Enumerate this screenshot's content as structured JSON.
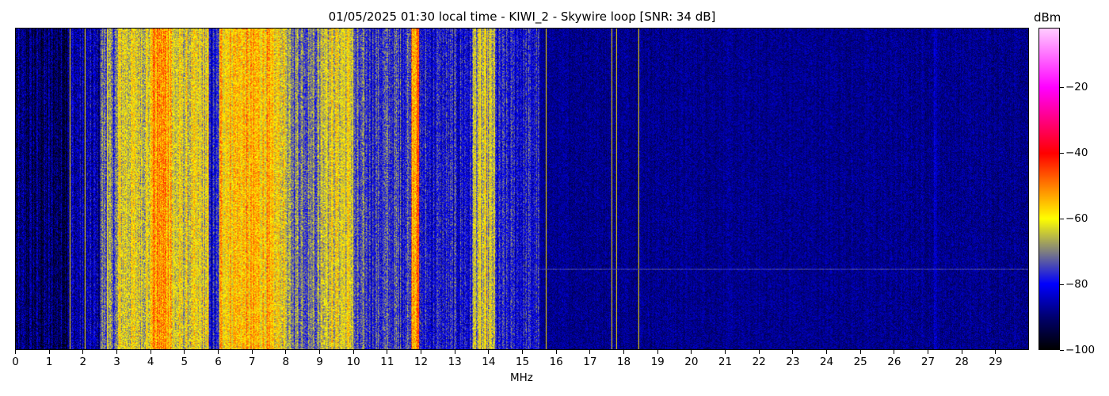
{
  "chart_data": {
    "type": "heatmap",
    "title": "01/05/2025 01:30 local time - KIWI_2 - Skywire loop [SNR: 34 dB]",
    "xlabel": "MHz",
    "ylabel": "",
    "xlim": [
      0,
      30
    ],
    "xticks": [
      0,
      1,
      2,
      3,
      4,
      5,
      6,
      7,
      8,
      9,
      10,
      11,
      12,
      13,
      14,
      15,
      16,
      17,
      18,
      19,
      20,
      21,
      22,
      23,
      24,
      25,
      26,
      27,
      28,
      29
    ],
    "colorbar": {
      "label": "dBm",
      "range": [
        -100,
        -2
      ],
      "ticks": [
        -20,
        -40,
        -60,
        -80,
        -100
      ],
      "colormap": [
        {
          "value": -100,
          "color": "#000000"
        },
        {
          "value": -90,
          "color": "#000070"
        },
        {
          "value": -80,
          "color": "#0000ff"
        },
        {
          "value": -70,
          "color": "#808080"
        },
        {
          "value": -60,
          "color": "#ffff00"
        },
        {
          "value": -50,
          "color": "#ff8000"
        },
        {
          "value": -40,
          "color": "#ff0000"
        },
        {
          "value": -20,
          "color": "#ff00ff"
        },
        {
          "value": -2,
          "color": "#ffccff"
        }
      ]
    },
    "mean_spectrum_dBm": [
      [
        0,
        -91
      ],
      [
        1.5,
        -86
      ],
      [
        2.5,
        -72
      ],
      [
        3,
        -62
      ],
      [
        4,
        -52
      ],
      [
        4.6,
        -63
      ],
      [
        5.7,
        -80
      ],
      [
        6,
        -56
      ],
      [
        7.5,
        -60
      ],
      [
        8,
        -70
      ],
      [
        9,
        -62
      ],
      [
        10,
        -76
      ],
      [
        11.6,
        -74
      ],
      [
        11.7,
        -50
      ],
      [
        11.95,
        -80
      ],
      [
        13.5,
        -66
      ],
      [
        14.2,
        -80
      ],
      [
        15.5,
        -88
      ],
      [
        27.1,
        -88
      ],
      [
        27.2,
        -84
      ],
      [
        27.3,
        -88
      ],
      [
        30,
        -90
      ]
    ],
    "narrow_carriers_MHz": [
      1.6,
      2.05,
      2.7,
      4.2,
      9.2,
      11.8,
      13.75,
      15.7,
      17.65,
      17.8,
      18.45
    ],
    "horizontal_interference_fraction_of_time": 0.75
  }
}
